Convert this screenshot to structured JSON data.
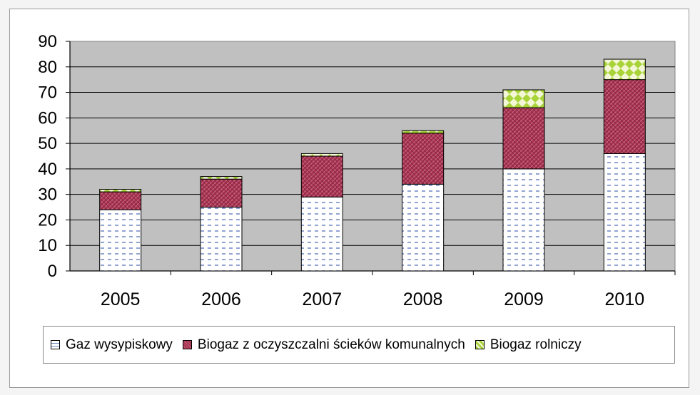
{
  "chart_data": {
    "type": "bar",
    "stacked": true,
    "categories": [
      "2005",
      "2006",
      "2007",
      "2008",
      "2009",
      "2010"
    ],
    "series": [
      {
        "name": "Gaz wysypiskowy",
        "values": [
          24,
          25,
          29,
          34,
          40,
          46
        ],
        "color": "#ffffff",
        "pattern": "dashed-blue"
      },
      {
        "name": "Biogaz z oczyszczalni ścieków komunalnych",
        "values": [
          7,
          11,
          16,
          20,
          24,
          29
        ],
        "color": "#a8324f",
        "pattern": "crosshatch"
      },
      {
        "name": "Biogaz rolniczy",
        "values": [
          1,
          1,
          1,
          1,
          7,
          8
        ],
        "color": "#b7e04c",
        "pattern": "diamond"
      }
    ],
    "ylim": [
      0,
      90
    ],
    "yticks": [
      "0",
      "10",
      "20",
      "30",
      "40",
      "50",
      "60",
      "70",
      "80",
      "90"
    ],
    "grid": true,
    "plot_background": "#c0c0c0",
    "legend_position": "bottom"
  }
}
